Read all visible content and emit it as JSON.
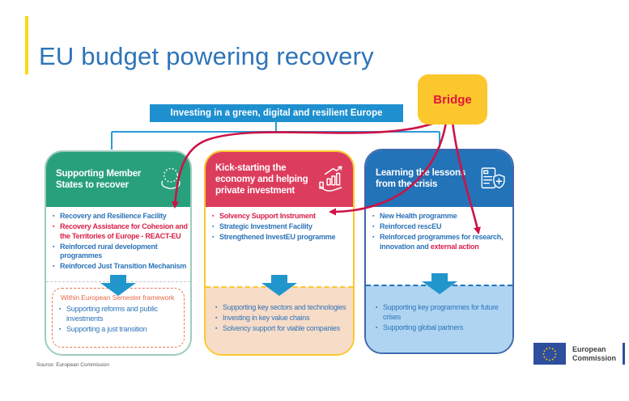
{
  "page": {
    "title": "EU budget powering recovery",
    "source": "Source: European Commission"
  },
  "banner": {
    "label": "Investing in a green, digital and resilient Europe"
  },
  "bridge": {
    "label": "Bridge"
  },
  "columns": [
    {
      "title": "Supporting Member States to recover",
      "icon": "hands-holding-eu-stars-icon",
      "header_color": "#29A07C",
      "bullets": [
        {
          "segments": [
            {
              "text": "Recovery and Resilience Facility",
              "style": "blue"
            }
          ]
        },
        {
          "segments": [
            {
              "text": "Recovery Assistance for Cohesion and the Territories of Europe - REACT-EU",
              "style": "red"
            }
          ]
        },
        {
          "segments": [
            {
              "text": "Reinforced rural development programmes",
              "style": "blue"
            }
          ]
        },
        {
          "segments": [
            {
              "text": "Reinforced Just Transition Mechanism",
              "style": "blue"
            }
          ]
        }
      ],
      "bottom": {
        "title": "Within European Semester framework",
        "bullets": [
          {
            "segments": [
              {
                "text": "Supporting reforms and public investments",
                "style": "blue"
              }
            ]
          },
          {
            "segments": [
              {
                "text": "Supporting a just transition",
                "style": "blue"
              }
            ]
          }
        ]
      }
    },
    {
      "title": "Kick-starting the economy and helping private investment",
      "icon": "hand-growth-chart-icon",
      "header_color": "#DD3D5D",
      "bullets": [
        {
          "segments": [
            {
              "text": "Solvency Support Instrument",
              "style": "red"
            }
          ]
        },
        {
          "segments": [
            {
              "text": "Strategic Investment Facility",
              "style": "blue"
            }
          ]
        },
        {
          "segments": [
            {
              "text": "Strengthened InvestEU programme",
              "style": "blue"
            }
          ]
        }
      ],
      "bottom": {
        "title": "",
        "bullets": [
          {
            "segments": [
              {
                "text": "Supporting key sectors and technologies",
                "style": "blue"
              }
            ]
          },
          {
            "segments": [
              {
                "text": "Investing in key value chains",
                "style": "blue"
              }
            ]
          },
          {
            "segments": [
              {
                "text": "Solvency support for viable companies",
                "style": "blue"
              }
            ]
          }
        ]
      }
    },
    {
      "title": "Learning the lessons from the crisis",
      "icon": "health-report-shield-icon",
      "header_color": "#2273B8",
      "bullets": [
        {
          "segments": [
            {
              "text": "New Health programme",
              "style": "blue"
            }
          ]
        },
        {
          "segments": [
            {
              "text": "Reinforced rescEU",
              "style": "blue"
            }
          ]
        },
        {
          "segments": [
            {
              "text": "Reinforced programmes for research, innovation and ",
              "style": "blue"
            },
            {
              "text": "external action",
              "style": "red"
            }
          ]
        }
      ],
      "bottom": {
        "title": "",
        "bullets": [
          {
            "segments": [
              {
                "text": "Supporting key programmes for future crises",
                "style": "blue"
              }
            ]
          },
          {
            "segments": [
              {
                "text": "Supporting global partners",
                "style": "blue"
              }
            ]
          }
        ]
      }
    }
  ],
  "logo": {
    "line1": "European",
    "line2": "Commission"
  },
  "colors": {
    "title_blue": "#2E74B8",
    "banner_blue": "#1E90CF",
    "bridge_yellow": "#FCC72C",
    "bridge_text_red": "#E0173C",
    "green": "#29A07C",
    "crimson": "#DD3D5D",
    "blue": "#2273B8",
    "red_arrow_line": "#CE1246",
    "peach": "#F7DCC8",
    "light_blue": "#AED4F2",
    "semester_orange": "#E8694A",
    "accent_yellow": "#FFD617"
  }
}
